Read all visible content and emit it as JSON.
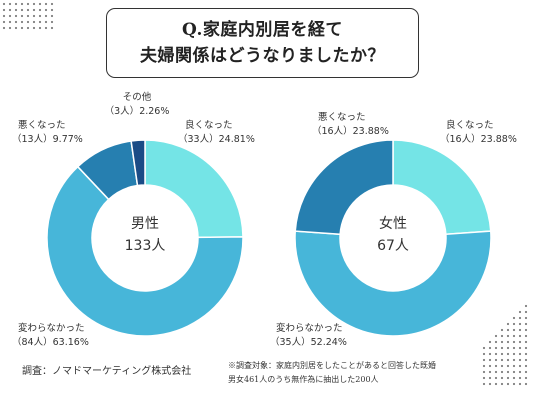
{
  "title": {
    "line1": "Q.家庭内別居を経て",
    "line2": "夫婦関係はどうなりましたか？"
  },
  "colors": {
    "good": "#74e4e6",
    "same": "#47b6d9",
    "bad": "#267fb0",
    "other": "#1b4c86"
  },
  "chart_data": [
    {
      "type": "pie",
      "subtype": "donut",
      "center_label": [
        "男性",
        "133人"
      ],
      "categories": [
        "良くなった",
        "変わらなかった",
        "悪くなった",
        "その他"
      ],
      "counts": [
        "33人",
        "84人",
        "13人",
        "3人"
      ],
      "values": [
        24.81,
        63.16,
        9.77,
        2.26
      ],
      "value_labels": [
        "24.81%",
        "63.16%",
        "9.77%",
        "2.26%"
      ],
      "colors": [
        "#74e4e6",
        "#47b6d9",
        "#267fb0",
        "#1b4c86"
      ]
    },
    {
      "type": "pie",
      "subtype": "donut",
      "center_label": [
        "女性",
        "67人"
      ],
      "categories": [
        "良くなった",
        "変わらなかった",
        "悪くなった"
      ],
      "counts": [
        "16人",
        "35人",
        "16人"
      ],
      "values": [
        23.88,
        52.24,
        23.88
      ],
      "value_labels": [
        "23.88%",
        "52.24%",
        "23.88%"
      ],
      "colors": [
        "#74e4e6",
        "#47b6d9",
        "#267fb0"
      ]
    }
  ],
  "footer": {
    "survey": "調査：ノマドマーケティング株式会社",
    "note_line1": "※調査対象：家庭内別居をしたことがあると回答した既婚",
    "note_line2": "男女461人のうち無作為に抽出した200人"
  }
}
